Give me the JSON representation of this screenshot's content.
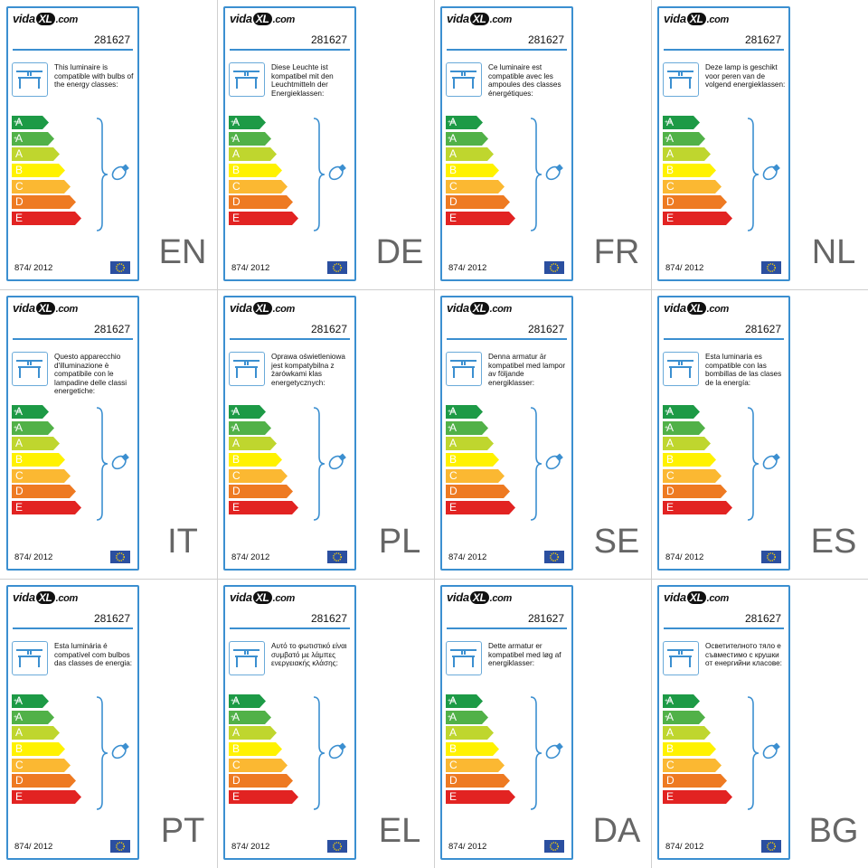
{
  "brand": {
    "name": "vida",
    "xl": "XL",
    "domain": ".com"
  },
  "sku": "281627",
  "regulation": "874/ 2012",
  "flag_icon": "eu-flag-icon",
  "lamp_icon": "ceiling-luminaire-icon",
  "bulb_icon": "bulb-icon",
  "colors": {
    "border": "#3b8fd0",
    "classes": [
      "#1d9a46",
      "#51b148",
      "#bfd62e",
      "#fff200",
      "#fbb832",
      "#ee7a22",
      "#e22322"
    ]
  },
  "energy_classes": [
    {
      "letter": "A",
      "sup": "++"
    },
    {
      "letter": "A",
      "sup": "+"
    },
    {
      "letter": "A",
      "sup": ""
    },
    {
      "letter": "B",
      "sup": ""
    },
    {
      "letter": "C",
      "sup": ""
    },
    {
      "letter": "D",
      "sup": ""
    },
    {
      "letter": "E",
      "sup": ""
    }
  ],
  "labels": [
    {
      "lang": "EN",
      "text": "This luminaire is compatible with bulbs of the energy classes:"
    },
    {
      "lang": "DE",
      "text": "Diese Leuchte ist kompatibel mit den Leuchtmitteln der Energieklassen:"
    },
    {
      "lang": "FR",
      "text": "Ce luminaire est compatible avec les ampoules des classes énergétiques:"
    },
    {
      "lang": "NL",
      "text": "Deze lamp is geschikt voor peren van de volgend energieklassen:"
    },
    {
      "lang": "IT",
      "text": "Questo apparecchio d'illuminazione è compatibile con le lampadine delle classi energetiche:"
    },
    {
      "lang": "PL",
      "text": "Oprawa oświetleniowa jest kompatybilna z żarówkami klas energetycznych:"
    },
    {
      "lang": "SE",
      "text": "Denna armatur är kompatibel med lampor av följande energiklasser:"
    },
    {
      "lang": "ES",
      "text": "Esta luminaria es compatible con las bombillas de las clases de la energía:"
    },
    {
      "lang": "PT",
      "text": "Esta luminária é compatível com bulbos das classes de energia:"
    },
    {
      "lang": "EL",
      "text": "Αυτό το φωτιστικό είναι συμβατό με λάμπες ενεργειακής κλάσης:"
    },
    {
      "lang": "DA",
      "text": "Dette armatur er kompatibel med løg af energiklasser:"
    },
    {
      "lang": "BG",
      "text": "Осветителното тяло е съвместимо с крушки от енергийни класове:"
    }
  ]
}
